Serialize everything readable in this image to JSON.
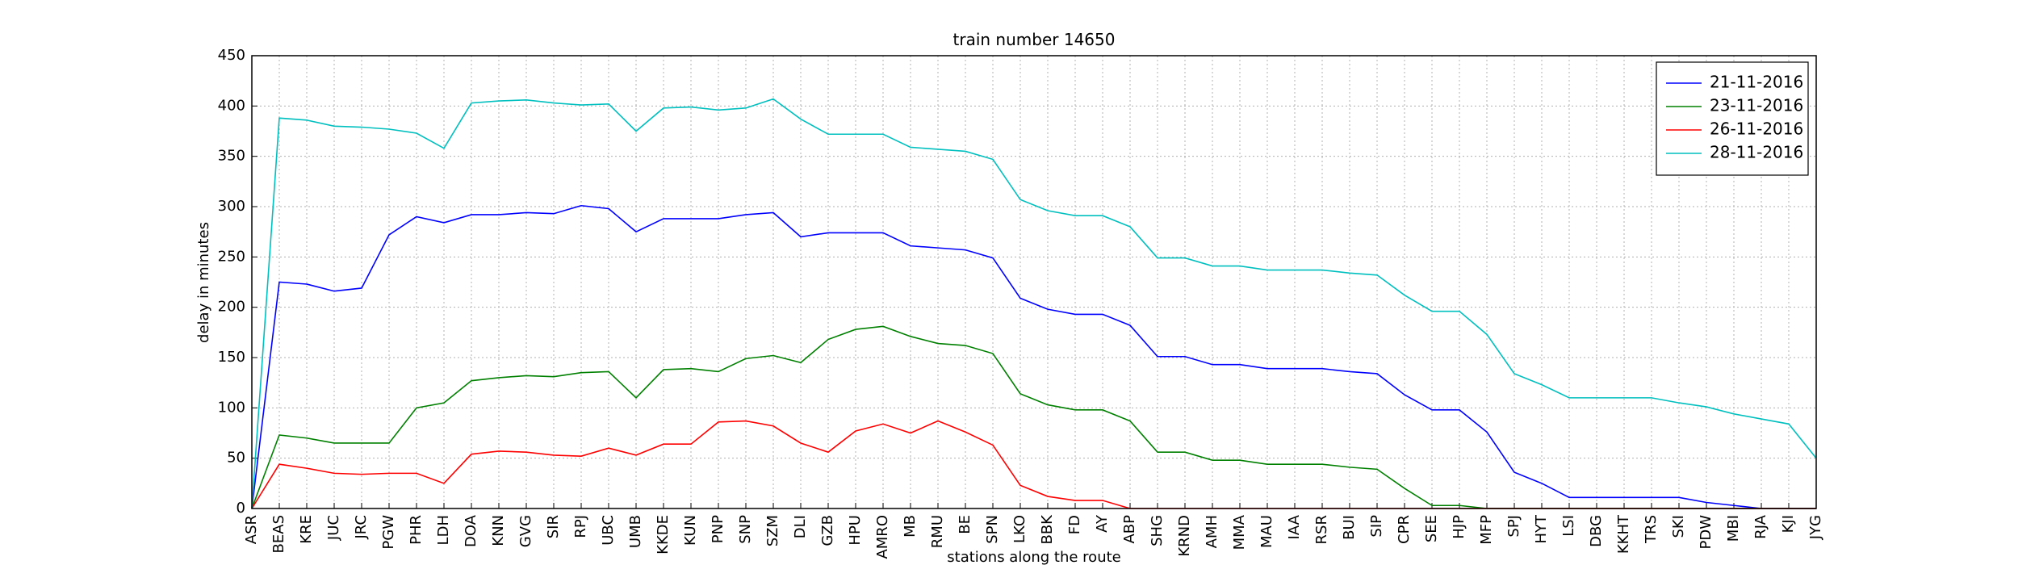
{
  "chart_data": {
    "type": "line",
    "title": "train number 14650",
    "xlabel": "stations along the route",
    "ylabel": "delay in minutes",
    "categories": [
      "ASR",
      "BEAS",
      "KRE",
      "JUC",
      "JRC",
      "PGW",
      "PHR",
      "LDH",
      "DOA",
      "KNN",
      "GVG",
      "SIR",
      "RPJ",
      "UBC",
      "UMB",
      "KKDE",
      "KUN",
      "PNP",
      "SNP",
      "SZM",
      "DLI",
      "GZB",
      "HPU",
      "AMRO",
      "MB",
      "RMU",
      "BE",
      "SPN",
      "LKO",
      "BBK",
      "FD",
      "AY",
      "ABP",
      "SHG",
      "KRND",
      "AMH",
      "MMA",
      "MAU",
      "IAA",
      "RSR",
      "BUI",
      "SIP",
      "CPR",
      "SEE",
      "HJP",
      "MFP",
      "SPJ",
      "HYT",
      "LSI",
      "DBG",
      "KKHT",
      "TRS",
      "SKI",
      "PDW",
      "MBI",
      "RJA",
      "KJI",
      "JYG"
    ],
    "series": [
      {
        "name": "21-11-2016",
        "color": "#0000ff",
        "values": [
          0,
          225,
          223,
          216,
          219,
          272,
          290,
          284,
          292,
          292,
          294,
          293,
          301,
          298,
          275,
          288,
          288,
          288,
          292,
          294,
          270,
          274,
          274,
          274,
          261,
          259,
          257,
          249,
          209,
          198,
          193,
          193,
          182,
          151,
          151,
          143,
          143,
          139,
          139,
          139,
          136,
          134,
          113,
          98,
          98,
          76,
          36,
          25,
          11,
          11,
          11,
          11,
          11,
          6,
          3,
          0,
          0,
          0
        ]
      },
      {
        "name": "23-11-2016",
        "color": "#008000",
        "values": [
          0,
          73,
          70,
          65,
          65,
          65,
          100,
          105,
          127,
          130,
          132,
          131,
          135,
          136,
          110,
          138,
          139,
          136,
          149,
          152,
          145,
          168,
          178,
          181,
          171,
          164,
          162,
          154,
          114,
          103,
          98,
          98,
          87,
          56,
          56,
          48,
          48,
          44,
          44,
          44,
          41,
          39,
          20,
          3,
          3,
          0,
          0,
          0,
          0,
          0,
          0,
          0,
          0,
          0,
          0,
          0,
          0,
          0
        ]
      },
      {
        "name": "26-11-2016",
        "color": "#ff0000",
        "values": [
          0,
          44,
          40,
          35,
          34,
          35,
          35,
          25,
          54,
          57,
          56,
          53,
          52,
          60,
          53,
          64,
          64,
          86,
          87,
          82,
          65,
          56,
          77,
          84,
          75,
          87,
          76,
          63,
          23,
          12,
          8,
          8,
          0,
          0,
          0,
          0,
          0,
          0,
          0,
          0,
          0,
          0,
          0,
          0,
          0,
          0,
          0,
          0,
          0,
          0,
          0,
          0,
          0,
          0,
          0,
          0,
          0,
          0
        ]
      },
      {
        "name": "28-11-2016",
        "color": "#00bfbf",
        "values": [
          0,
          388,
          386,
          380,
          379,
          377,
          373,
          358,
          403,
          405,
          406,
          403,
          401,
          402,
          375,
          398,
          399,
          396,
          398,
          407,
          387,
          372,
          372,
          372,
          359,
          357,
          355,
          347,
          307,
          296,
          291,
          291,
          280,
          249,
          249,
          241,
          241,
          237,
          237,
          237,
          234,
          232,
          212,
          196,
          196,
          173,
          134,
          123,
          110,
          110,
          110,
          110,
          105,
          101,
          94,
          89,
          84,
          50
        ]
      }
    ],
    "ylim": [
      0,
      450
    ],
    "yticks": [
      0,
      50,
      100,
      150,
      200,
      250,
      300,
      350,
      400,
      450
    ],
    "grid": true,
    "legend": "upper right"
  }
}
